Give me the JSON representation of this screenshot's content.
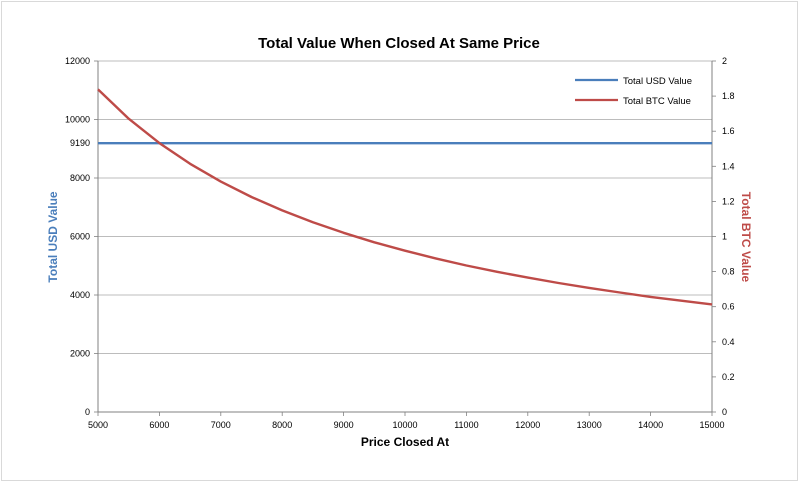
{
  "chart_data": {
    "type": "line",
    "title": "Total Value When Closed At Same Price",
    "xlabel": "Price Closed At",
    "ylabel_left": "Total USD Value",
    "ylabel_right": "Total BTC Value",
    "xlim": [
      5000,
      15000
    ],
    "ylim_left": [
      0,
      12000
    ],
    "ylim_right": [
      0,
      2
    ],
    "x_ticks": [
      "5000",
      "6000",
      "7000",
      "8000",
      "9000",
      "10000",
      "11000",
      "12000",
      "13000",
      "14000",
      "15000"
    ],
    "y_left_ticks": [
      "0",
      "2000",
      "4000",
      "6000",
      "8000",
      "10000",
      "12000"
    ],
    "y_left_extra_tick": "9190",
    "y_right_ticks": [
      "0",
      "0.2",
      "0.4",
      "0.6",
      "0.8",
      "1",
      "1.2",
      "1.4",
      "1.6",
      "1.8",
      "2"
    ],
    "grid": true,
    "legend_position": "top-right",
    "colors": {
      "usd": "#4a7ebb",
      "btc": "#be4b48",
      "usd_axis_title": "#4a7ebb",
      "btc_axis_title": "#be4b48",
      "grid": "#a6a6a6"
    },
    "series": [
      {
        "name": "Total USD Value",
        "axis": "left",
        "x": [
          5000,
          6000,
          7000,
          8000,
          9000,
          10000,
          11000,
          12000,
          13000,
          14000,
          15000
        ],
        "y": [
          9190,
          9190,
          9190,
          9190,
          9190,
          9190,
          9190,
          9190,
          9190,
          9190,
          9190
        ]
      },
      {
        "name": "Total BTC Value",
        "axis": "right",
        "x": [
          5000,
          5500,
          6000,
          6500,
          7000,
          7500,
          8000,
          8500,
          9000,
          9500,
          10000,
          10500,
          11000,
          11500,
          12000,
          12500,
          13000,
          13500,
          14000,
          14500,
          15000
        ],
        "y": [
          1.838,
          1.671,
          1.532,
          1.414,
          1.313,
          1.225,
          1.149,
          1.081,
          1.021,
          0.967,
          0.919,
          0.875,
          0.835,
          0.799,
          0.766,
          0.735,
          0.707,
          0.681,
          0.656,
          0.634,
          0.613
        ]
      }
    ]
  }
}
